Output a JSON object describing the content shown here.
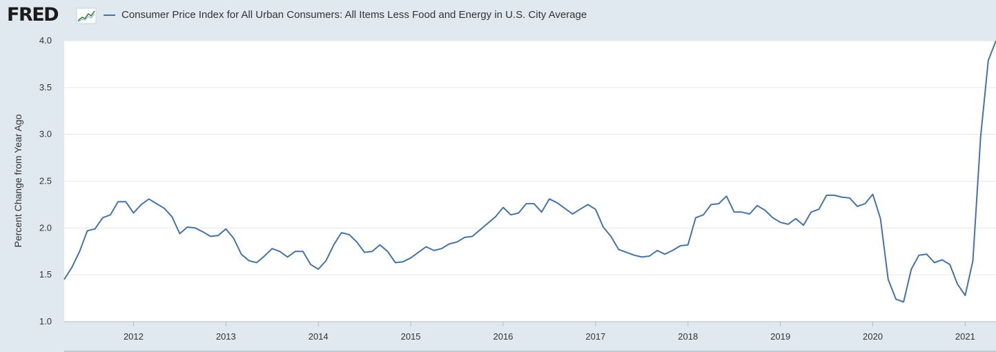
{
  "header": {
    "logo_text": "FRED",
    "logo_icon": "chart-line-icon",
    "series_title": "Consumer Price Index for All Urban Consumers: All Items Less Food and Energy in U.S. City Average"
  },
  "colors": {
    "line": "#4572a7",
    "plot_bg": "#ffffff",
    "page_bg": "#e1e9f0",
    "grid": "#e6e6e6"
  },
  "chart_data": {
    "type": "line",
    "title": "Consumer Price Index for All Urban Consumers: All Items Less Food and Energy in U.S. City Average",
    "xlabel": "",
    "ylabel": "Percent Change from Year Ago",
    "ylim": [
      1.0,
      4.0
    ],
    "xlim": [
      "2011-04",
      "2021-05"
    ],
    "y_ticks": [
      "1.0",
      "1.5",
      "2.0",
      "2.5",
      "3.0",
      "3.5",
      "4.0"
    ],
    "x_ticks": [
      "2012",
      "2013",
      "2014",
      "2015",
      "2016",
      "2017",
      "2018",
      "2019",
      "2020",
      "2021"
    ],
    "grid": "horizontal",
    "legend": "top-left",
    "series": [
      {
        "name": "Consumer Price Index for All Urban Consumers: All Items Less Food and Energy in U.S. City Average",
        "x": [
          "2011-04",
          "2011-05",
          "2011-06",
          "2011-07",
          "2011-08",
          "2011-09",
          "2011-10",
          "2011-11",
          "2011-12",
          "2012-01",
          "2012-02",
          "2012-03",
          "2012-04",
          "2012-05",
          "2012-06",
          "2012-07",
          "2012-08",
          "2012-09",
          "2012-10",
          "2012-11",
          "2012-12",
          "2013-01",
          "2013-02",
          "2013-03",
          "2013-04",
          "2013-05",
          "2013-06",
          "2013-07",
          "2013-08",
          "2013-09",
          "2013-10",
          "2013-11",
          "2013-12",
          "2014-01",
          "2014-02",
          "2014-03",
          "2014-04",
          "2014-05",
          "2014-06",
          "2014-07",
          "2014-08",
          "2014-09",
          "2014-10",
          "2014-11",
          "2014-12",
          "2015-01",
          "2015-02",
          "2015-03",
          "2015-04",
          "2015-05",
          "2015-06",
          "2015-07",
          "2015-08",
          "2015-09",
          "2015-10",
          "2015-11",
          "2015-12",
          "2016-01",
          "2016-02",
          "2016-03",
          "2016-04",
          "2016-05",
          "2016-06",
          "2016-07",
          "2016-08",
          "2016-09",
          "2016-10",
          "2016-11",
          "2016-12",
          "2017-01",
          "2017-02",
          "2017-03",
          "2017-04",
          "2017-05",
          "2017-06",
          "2017-07",
          "2017-08",
          "2017-09",
          "2017-10",
          "2017-11",
          "2017-12",
          "2018-01",
          "2018-02",
          "2018-03",
          "2018-04",
          "2018-05",
          "2018-06",
          "2018-07",
          "2018-08",
          "2018-09",
          "2018-10",
          "2018-11",
          "2018-12",
          "2019-01",
          "2019-02",
          "2019-03",
          "2019-04",
          "2019-05",
          "2019-06",
          "2019-07",
          "2019-08",
          "2019-09",
          "2019-10",
          "2019-11",
          "2019-12",
          "2020-01",
          "2020-02",
          "2020-03",
          "2020-04",
          "2020-05",
          "2020-06",
          "2020-07",
          "2020-08",
          "2020-09",
          "2020-10",
          "2020-11",
          "2020-12",
          "2021-01",
          "2021-02",
          "2021-03",
          "2021-04",
          "2021-05"
        ],
        "values": [
          1.45,
          1.58,
          1.75,
          1.97,
          1.99,
          2.11,
          2.14,
          2.28,
          2.28,
          2.16,
          2.25,
          2.31,
          2.26,
          2.21,
          2.12,
          1.94,
          2.01,
          2.0,
          1.96,
          1.91,
          1.92,
          1.99,
          1.89,
          1.72,
          1.65,
          1.63,
          1.7,
          1.78,
          1.75,
          1.69,
          1.75,
          1.75,
          1.61,
          1.56,
          1.65,
          1.82,
          1.95,
          1.93,
          1.85,
          1.74,
          1.75,
          1.82,
          1.75,
          1.63,
          1.64,
          1.68,
          1.74,
          1.8,
          1.76,
          1.78,
          1.83,
          1.85,
          1.9,
          1.91,
          1.98,
          2.05,
          2.12,
          2.22,
          2.14,
          2.16,
          2.26,
          2.26,
          2.17,
          2.31,
          2.27,
          2.21,
          2.15,
          2.2,
          2.25,
          2.2,
          2.01,
          1.91,
          1.77,
          1.74,
          1.71,
          1.69,
          1.7,
          1.76,
          1.72,
          1.76,
          1.81,
          1.82,
          2.11,
          2.14,
          2.25,
          2.26,
          2.34,
          2.17,
          2.17,
          2.15,
          2.24,
          2.19,
          2.11,
          2.06,
          2.04,
          2.1,
          2.03,
          2.17,
          2.2,
          2.35,
          2.35,
          2.33,
          2.32,
          2.23,
          2.26,
          2.36,
          2.1,
          1.45,
          1.24,
          1.21,
          1.56,
          1.71,
          1.72,
          1.63,
          1.66,
          1.61,
          1.4,
          1.28,
          1.65,
          2.97,
          3.79,
          4.0
        ]
      }
    ]
  }
}
